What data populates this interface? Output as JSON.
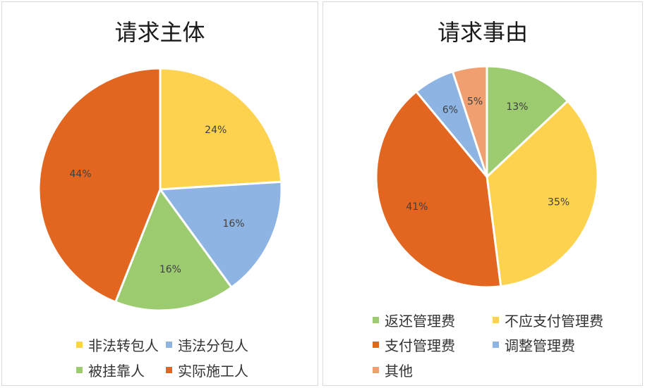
{
  "chart_data": [
    {
      "type": "pie",
      "title": "请求主体",
      "categories": [
        "非法转包人",
        "违法分包人",
        "被挂靠人",
        "实际施工人"
      ],
      "values": [
        24,
        16,
        16,
        44
      ],
      "labels": [
        "24%",
        "16%",
        "16%",
        "44%"
      ],
      "colors": [
        "#FDD24E",
        "#8EB4E3",
        "#9CCB70",
        "#E26520"
      ],
      "legend_position": "bottom"
    },
    {
      "type": "pie",
      "title": "请求事由",
      "categories": [
        "返还管理费",
        "不应支付管理费",
        "支付管理费",
        "调整管理费",
        "其他"
      ],
      "values": [
        13,
        35,
        41,
        6,
        5
      ],
      "labels": [
        "13%",
        "35%",
        "41%",
        "6%",
        "5%"
      ],
      "colors": [
        "#9CCB70",
        "#FDD24E",
        "#E26520",
        "#8EB4E3",
        "#F0A070"
      ],
      "legend_position": "bottom"
    }
  ]
}
